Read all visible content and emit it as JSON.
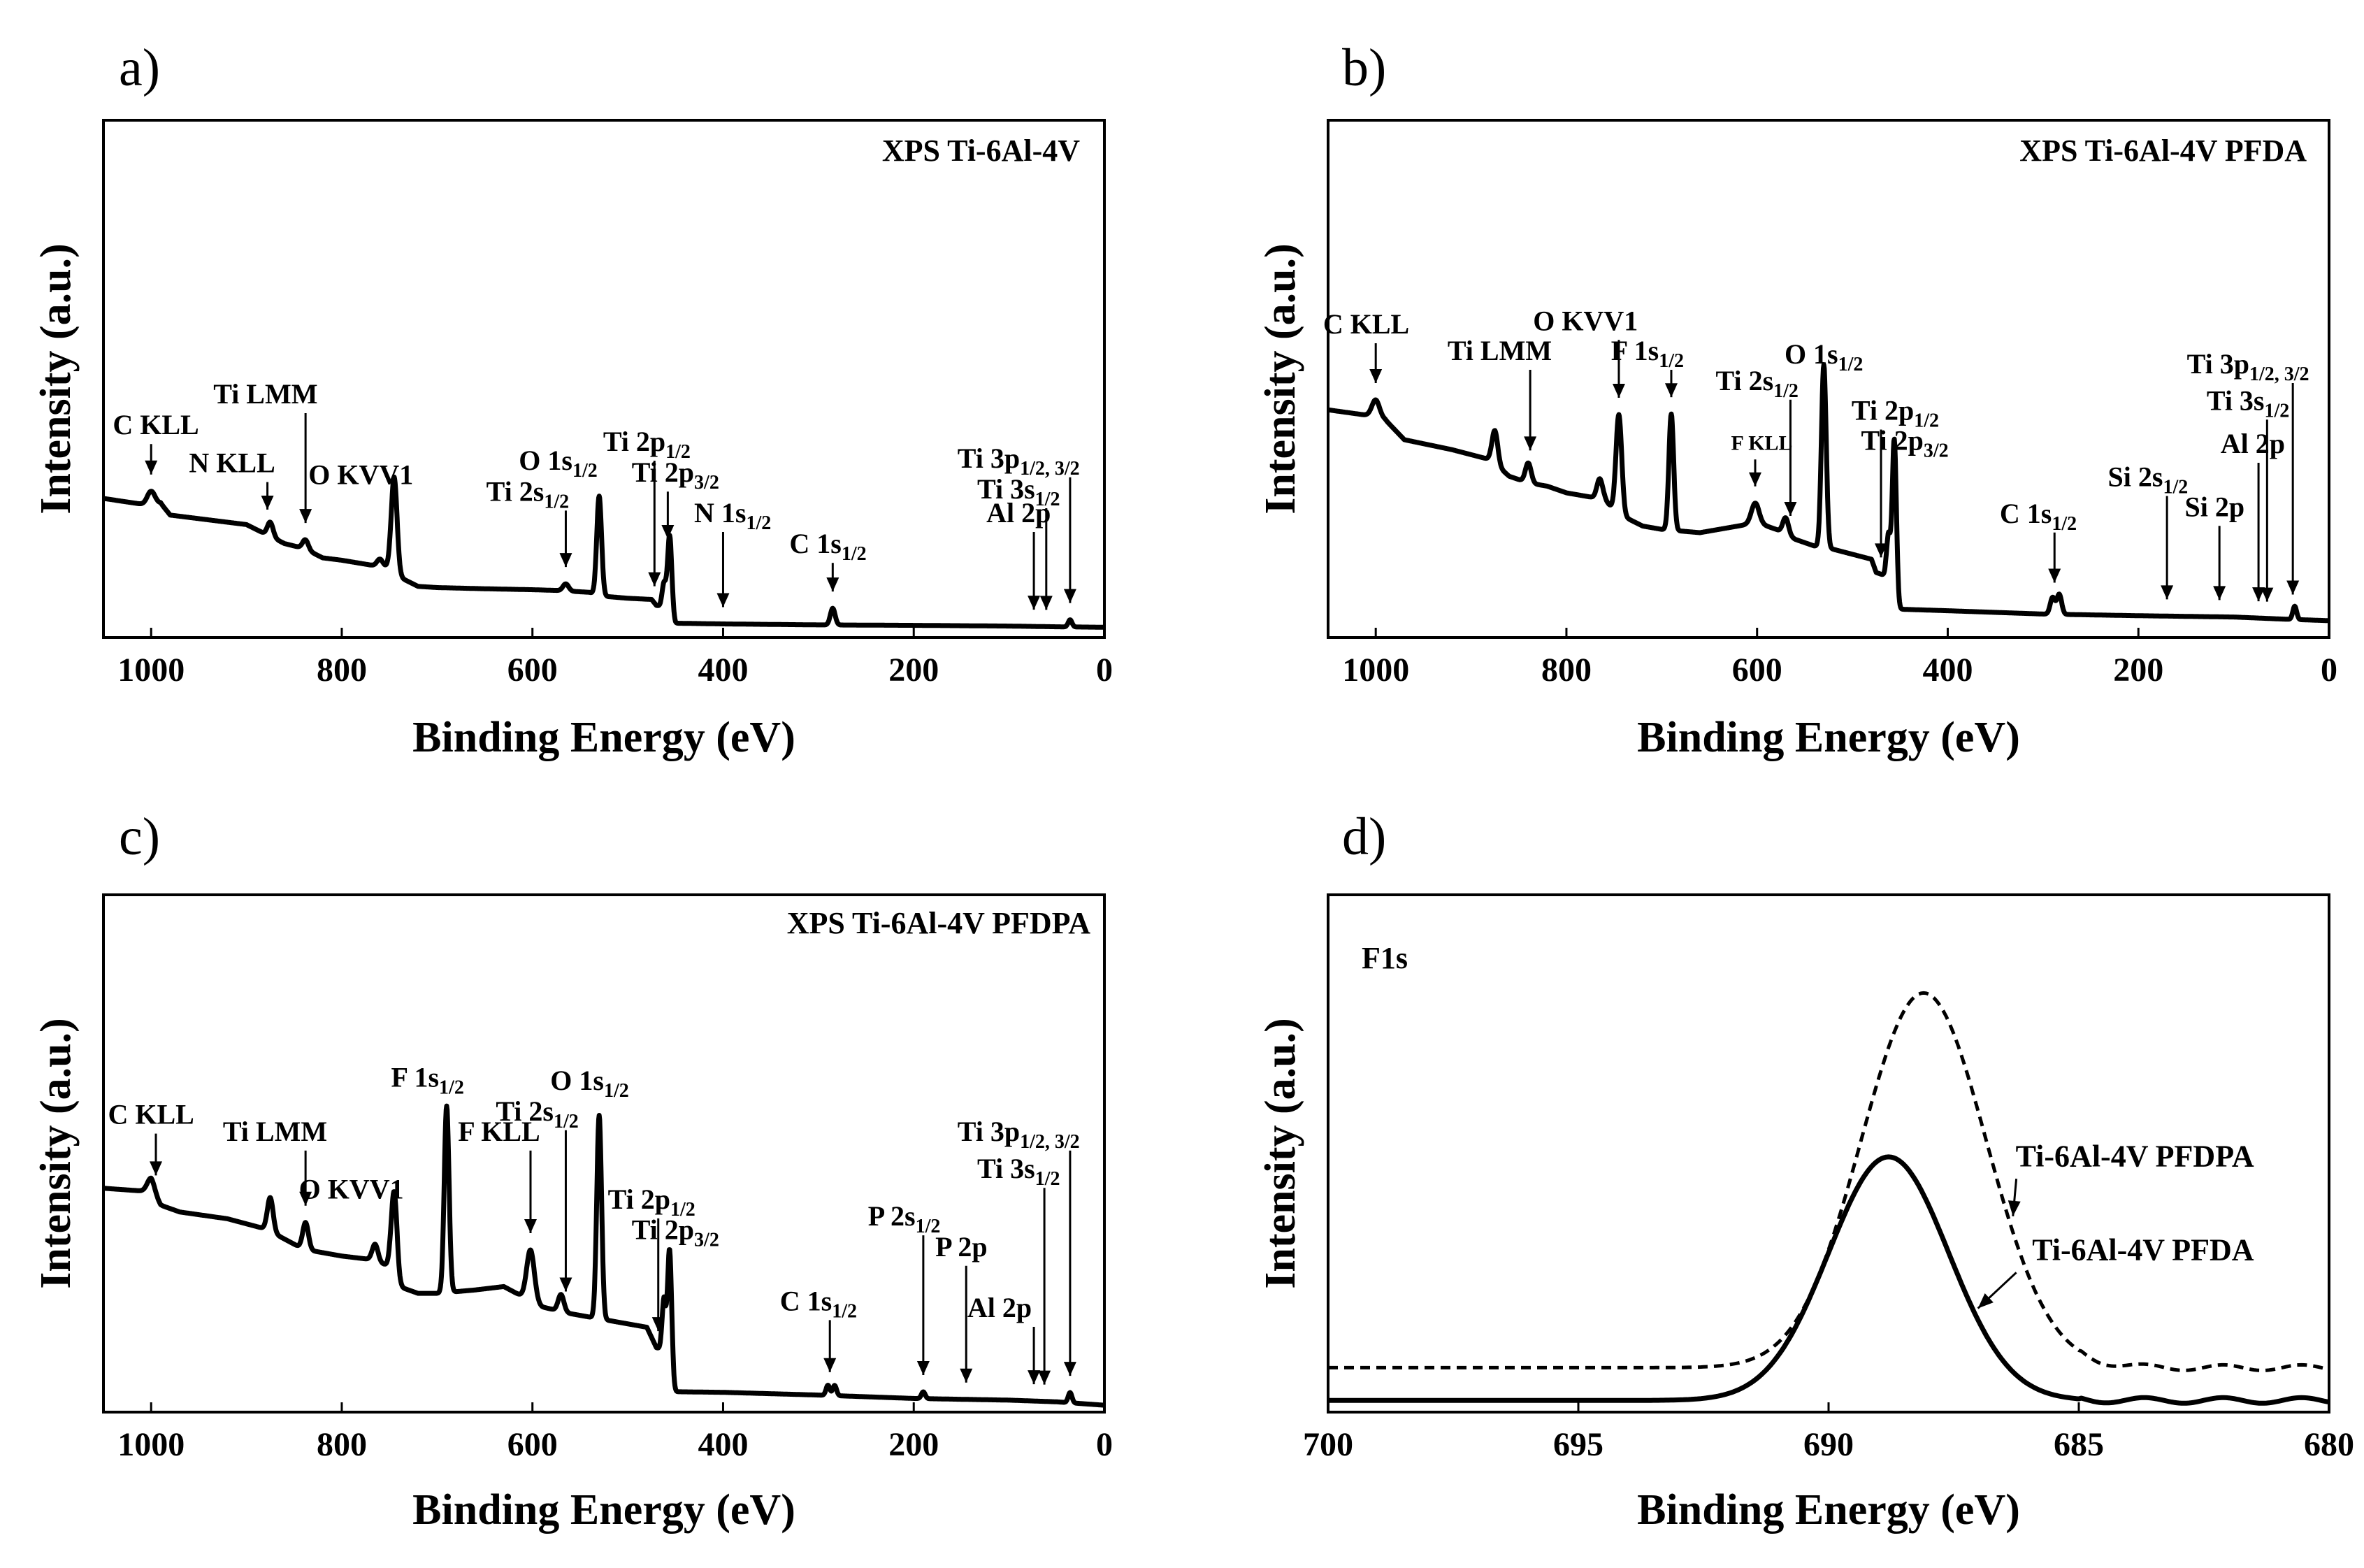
{
  "figure": {
    "panels": [
      "a)",
      "b)",
      "c)",
      "d)"
    ]
  },
  "chart_data": [
    {
      "id": "a",
      "type": "line",
      "panel_label": "a)",
      "title": "XPS Ti-6Al-4V",
      "xlabel": "Binding Energy (eV)",
      "ylabel": "Intensity (a.u.)",
      "xlim": [
        1050,
        0
      ],
      "ylim": [
        0,
        100
      ],
      "xticks": [
        1000,
        800,
        600,
        400,
        200,
        0
      ],
      "baseline": [
        [
          1050,
          55
        ],
        [
          1000,
          52
        ],
        [
          990,
          53
        ],
        [
          980,
          48
        ],
        [
          940,
          46
        ],
        [
          900,
          44
        ],
        [
          880,
          40
        ],
        [
          860,
          36
        ],
        [
          840,
          34
        ],
        [
          820,
          30
        ],
        [
          800,
          29
        ],
        [
          770,
          27
        ],
        [
          750,
          26
        ],
        [
          740,
          22
        ],
        [
          720,
          18
        ],
        [
          700,
          17.5
        ],
        [
          650,
          17
        ],
        [
          600,
          16.6
        ],
        [
          575,
          16.3
        ],
        [
          540,
          15.5
        ],
        [
          530,
          14
        ],
        [
          500,
          13
        ],
        [
          475,
          12.5
        ],
        [
          470,
          10
        ],
        [
          460,
          9
        ],
        [
          450,
          2.5
        ],
        [
          400,
          2.2
        ],
        [
          300,
          1.8
        ],
        [
          200,
          1.6
        ],
        [
          100,
          1.3
        ],
        [
          50,
          1
        ],
        [
          0,
          0.8
        ]
      ],
      "peaks": [
        [
          1000,
          6,
          4
        ],
        [
          875,
          6,
          3
        ],
        [
          838,
          4,
          3
        ],
        [
          760,
          3,
          3
        ],
        [
          745,
          40,
          3
        ],
        [
          565,
          3,
          3
        ],
        [
          530,
          42,
          2.5
        ],
        [
          462,
          10,
          2
        ],
        [
          456,
          33,
          2.2
        ],
        [
          285,
          7,
          2.5
        ],
        [
          36,
          3,
          2
        ]
      ],
      "annotations": [
        {
          "label": "C KLL",
          "x": 1000,
          "tx": 995,
          "ty": 82
        },
        {
          "label": "N KLL",
          "x": 878,
          "tx": 915,
          "ty": 66
        },
        {
          "label": "Ti LMM",
          "x": 838,
          "tx": 880,
          "ty": 95
        },
        {
          "label": "O KVV1",
          "x": 745,
          "tx": 780,
          "ty": 61
        },
        {
          "label": "O 1s",
          "sub": "1/2",
          "x": 530,
          "tx": 573,
          "ty": 67
        },
        {
          "label": "Ti 2s",
          "sub": "1/2",
          "x": 565,
          "tx": 605,
          "ty": 54
        },
        {
          "label": "Ti 2p",
          "sub": "1/2",
          "x": 472,
          "tx": 480,
          "ty": 75
        },
        {
          "label": "Ti 2p",
          "sub": "3/2",
          "x": 458,
          "tx": 450,
          "ty": 62
        },
        {
          "label": "N 1s",
          "sub": "1/2",
          "x": 400,
          "tx": 390,
          "ty": 45
        },
        {
          "label": "C 1s",
          "sub": "1/2",
          "x": 285,
          "tx": 290,
          "ty": 32
        },
        {
          "label": "Ti 3p",
          "sub": "1/2, 3/2",
          "x": 36,
          "tx": 90,
          "ty": 68
        },
        {
          "label": "Ti 3s",
          "sub": "1/2",
          "x": 61,
          "tx": 90,
          "ty": 55
        },
        {
          "label": "Al 2p",
          "x": 74,
          "tx": 90,
          "ty": 45
        }
      ]
    },
    {
      "id": "b",
      "type": "line",
      "panel_label": "b)",
      "title": "XPS Ti-6Al-4V PFDA",
      "xlabel": "Binding Energy (eV)",
      "ylabel": "Intensity (a.u.)",
      "xlim": [
        1050,
        0
      ],
      "ylim": [
        0,
        100
      ],
      "xticks": [
        1000,
        800,
        600,
        400,
        200,
        0
      ],
      "baseline": [
        [
          1050,
          65
        ],
        [
          1000,
          63
        ],
        [
          990,
          62
        ],
        [
          970,
          56
        ],
        [
          920,
          53
        ],
        [
          880,
          50
        ],
        [
          860,
          45
        ],
        [
          840,
          43
        ],
        [
          820,
          42
        ],
        [
          800,
          40
        ],
        [
          780,
          39
        ],
        [
          760,
          38
        ],
        [
          748,
          34
        ],
        [
          720,
          30
        ],
        [
          700,
          29
        ],
        [
          660,
          28
        ],
        [
          620,
          30
        ],
        [
          600,
          31
        ],
        [
          580,
          29
        ],
        [
          560,
          26
        ],
        [
          540,
          24
        ],
        [
          520,
          23
        ],
        [
          480,
          20
        ],
        [
          475,
          16
        ],
        [
          465,
          15
        ],
        [
          455,
          5
        ],
        [
          400,
          4.5
        ],
        [
          300,
          3.5
        ],
        [
          200,
          3
        ],
        [
          100,
          2.6
        ],
        [
          50,
          2
        ],
        [
          0,
          1.5
        ]
      ],
      "peaks": [
        [
          1000,
          5,
          4
        ],
        [
          875,
          10,
          3
        ],
        [
          840,
          6,
          3
        ],
        [
          765,
          6,
          3
        ],
        [
          745,
          30,
          3
        ],
        [
          690,
          35,
          2.5
        ],
        [
          602,
          6,
          4
        ],
        [
          570,
          5,
          3
        ],
        [
          530,
          55,
          2.5
        ],
        [
          462,
          15,
          2
        ],
        [
          456,
          50,
          2.2
        ],
        [
          290,
          5,
          2.5
        ],
        [
          283,
          6,
          2.5
        ],
        [
          36,
          4,
          2
        ]
      ],
      "annotations": [
        {
          "label": "C KLL",
          "x": 1000,
          "tx": 1010,
          "ty": 88
        },
        {
          "label": "Ti LMM",
          "x": 838,
          "tx": 870,
          "ty": 80
        },
        {
          "label": "O KVV1",
          "x": 745,
          "tx": 780,
          "ty": 89
        },
        {
          "label": "F 1s",
          "sub": "1/2",
          "x": 690,
          "tx": 715,
          "ty": 80
        },
        {
          "label": "Ti 2s",
          "sub": "1/2",
          "x": 565,
          "tx": 600,
          "ty": 71
        },
        {
          "label": "F KLL",
          "x": 602,
          "tx": 595,
          "ty": 53,
          "small": true
        },
        {
          "label": "O 1s",
          "sub": "1/2",
          "x": 530,
          "tx": 530,
          "ty": 79
        },
        {
          "label": "Ti 2p",
          "sub": "1/2",
          "x": 470,
          "tx": 455,
          "ty": 62
        },
        {
          "label": "Ti 2p",
          "sub": "3/2",
          "x": 457,
          "tx": 445,
          "ty": 53
        },
        {
          "label": "C 1s",
          "sub": "1/2",
          "x": 288,
          "tx": 305,
          "ty": 31
        },
        {
          "label": "Ti 3p",
          "sub": "1/2, 3/2",
          "x": 38,
          "tx": 85,
          "ty": 76
        },
        {
          "label": "Ti 3s",
          "sub": "1/2",
          "x": 65,
          "tx": 85,
          "ty": 65
        },
        {
          "label": "Al 2p",
          "x": 74,
          "tx": 80,
          "ty": 52
        },
        {
          "label": "Si 2s",
          "sub": "1/2",
          "x": 170,
          "tx": 190,
          "ty": 42
        },
        {
          "label": "Si 2p",
          "x": 115,
          "tx": 120,
          "ty": 33
        }
      ]
    },
    {
      "id": "c",
      "type": "line",
      "panel_label": "c)",
      "title": "XPS Ti-6Al-4V PFDPA",
      "xlabel": "Binding Energy (eV)",
      "ylabel": "Intensity (a.u.)",
      "xlim": [
        1050,
        0
      ],
      "ylim": [
        0,
        100
      ],
      "xticks": [
        1000,
        800,
        600,
        400,
        200,
        0
      ],
      "baseline": [
        [
          1050,
          65
        ],
        [
          1000,
          64
        ],
        [
          990,
          60
        ],
        [
          970,
          58
        ],
        [
          920,
          56
        ],
        [
          880,
          53
        ],
        [
          860,
          50
        ],
        [
          840,
          47
        ],
        [
          820,
          46
        ],
        [
          800,
          45
        ],
        [
          770,
          44
        ],
        [
          750,
          42
        ],
        [
          740,
          36
        ],
        [
          720,
          34
        ],
        [
          700,
          34
        ],
        [
          660,
          35
        ],
        [
          630,
          36
        ],
        [
          610,
          33
        ],
        [
          590,
          30
        ],
        [
          560,
          28
        ],
        [
          540,
          27
        ],
        [
          520,
          26
        ],
        [
          480,
          24
        ],
        [
          470,
          18
        ],
        [
          462,
          17
        ],
        [
          455,
          5
        ],
        [
          400,
          4.8
        ],
        [
          300,
          4
        ],
        [
          200,
          3
        ],
        [
          100,
          2.5
        ],
        [
          50,
          2
        ],
        [
          0,
          1
        ]
      ],
      "peaks": [
        [
          1000,
          4,
          4
        ],
        [
          875,
          10,
          3
        ],
        [
          838,
          8,
          3
        ],
        [
          765,
          5,
          3
        ],
        [
          745,
          25,
          3
        ],
        [
          690,
          55,
          2.5
        ],
        [
          602,
          15,
          4
        ],
        [
          570,
          5,
          3
        ],
        [
          530,
          60,
          2.5
        ],
        [
          462,
          15,
          2
        ],
        [
          456,
          40,
          2.2
        ],
        [
          290,
          3,
          2
        ],
        [
          283,
          3,
          2
        ],
        [
          190,
          2,
          2
        ],
        [
          36,
          3,
          2
        ]
      ],
      "annotations": [
        {
          "label": "C KLL",
          "x": 995,
          "tx": 1000,
          "ty": 84
        },
        {
          "label": "Ti LMM",
          "x": 838,
          "tx": 870,
          "ty": 79
        },
        {
          "label": "O KVV1",
          "x": 745,
          "tx": 790,
          "ty": 62
        },
        {
          "label": "F 1s",
          "sub": "1/2",
          "x": 690,
          "tx": 710,
          "ty": 95
        },
        {
          "label": "F KLL",
          "x": 602,
          "tx": 635,
          "ty": 79
        },
        {
          "label": "Ti 2s",
          "sub": "1/2",
          "x": 565,
          "tx": 595,
          "ty": 85
        },
        {
          "label": "O 1s",
          "sub": "1/2",
          "x": 530,
          "tx": 540,
          "ty": 94
        },
        {
          "label": "Ti 2p",
          "sub": "1/2",
          "x": 468,
          "tx": 475,
          "ty": 59
        },
        {
          "label": "Ti 2p",
          "sub": "3/2",
          "x": 457,
          "tx": 450,
          "ty": 50
        },
        {
          "label": "C 1s",
          "sub": "1/2",
          "x": 288,
          "tx": 300,
          "ty": 29
        },
        {
          "label": "P 2s",
          "sub": "1/2",
          "x": 190,
          "tx": 210,
          "ty": 54
        },
        {
          "label": "P 2p",
          "x": 145,
          "tx": 150,
          "ty": 45
        },
        {
          "label": "Al 2p",
          "x": 74,
          "tx": 110,
          "ty": 27
        },
        {
          "label": "Ti 3p",
          "sub": "1/2, 3/2",
          "x": 36,
          "tx": 90,
          "ty": 79
        },
        {
          "label": "Ti 3s",
          "sub": "1/2",
          "x": 63,
          "tx": 90,
          "ty": 68
        }
      ]
    },
    {
      "id": "d",
      "type": "line",
      "panel_label": "d)",
      "title": "F1s",
      "xlabel": "Binding Energy (eV)",
      "ylabel": "Intensity (a.u.)",
      "xlim": [
        700,
        680
      ],
      "ylim": [
        0,
        100
      ],
      "xticks": [
        700,
        695,
        690,
        685,
        680
      ],
      "series": [
        {
          "name": "Ti-6Al-4V PFDPA",
          "style": "dashed",
          "base": 8,
          "amp": 80,
          "center": 688.1,
          "sigma": 1.25
        },
        {
          "name": "Ti-6Al-4V PFDA",
          "style": "solid",
          "base": 1,
          "amp": 52,
          "center": 688.8,
          "sigma": 1.2
        }
      ],
      "legend": [
        {
          "label": "Ti-6Al-4V PFDPA",
          "tx": 681.5,
          "ty": 51,
          "ax": 686.4
        },
        {
          "label": "Ti-6Al-4V PFDA",
          "tx": 681.5,
          "ty": 31,
          "ax": 687.1
        }
      ]
    }
  ]
}
